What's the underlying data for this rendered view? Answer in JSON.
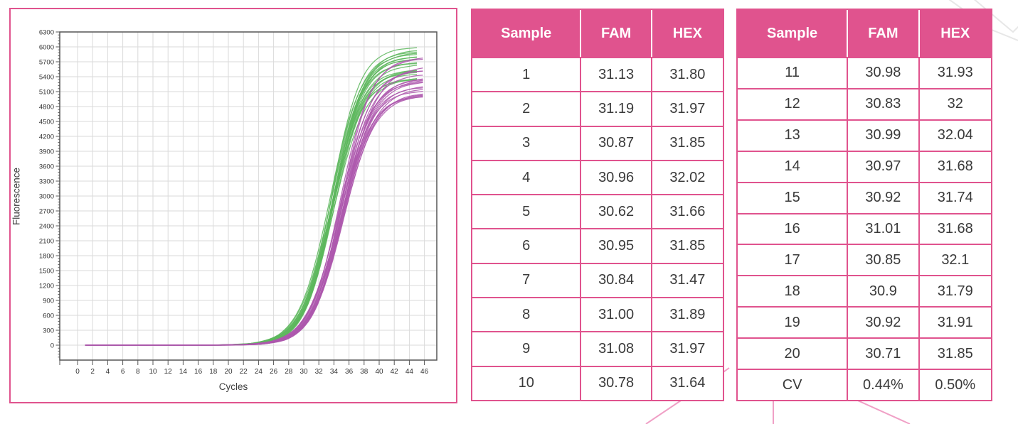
{
  "colors": {
    "accent_pink": "#e0538e",
    "deco_pink": "#f0a0c6",
    "deco_gray": "#e7e7e7",
    "grid": "#dadada",
    "axis": "#555555",
    "tick_text": "#333333",
    "fam_green": "#5db75d",
    "hex_purple": "#ad58ad"
  },
  "chart_data": {
    "type": "line",
    "title": "",
    "xlabel": "Cycles",
    "ylabel": "Fluorescence",
    "xlim": [
      0,
      46
    ],
    "ylim": [
      -300,
      6300
    ],
    "grid": true,
    "legend": false,
    "x_ticks": [
      0,
      2,
      4,
      6,
      8,
      10,
      12,
      14,
      16,
      18,
      20,
      22,
      24,
      26,
      28,
      30,
      32,
      34,
      36,
      38,
      40,
      42,
      44,
      46
    ],
    "y_ticks": [
      0,
      300,
      600,
      900,
      1200,
      1500,
      1800,
      2100,
      2400,
      2700,
      3000,
      3300,
      3600,
      3900,
      4200,
      4500,
      4800,
      5100,
      5400,
      5700,
      6000,
      6300
    ],
    "series_groups": [
      {
        "name": "FAM",
        "color": "#5db75d",
        "cts": [
          31.13,
          31.19,
          30.87,
          30.96,
          30.62,
          30.95,
          30.84,
          31.0,
          31.08,
          30.78,
          30.98,
          30.83,
          30.99,
          30.97,
          30.92,
          31.01,
          30.85,
          30.9,
          30.92,
          30.71
        ],
        "plateau_range": [
          5350,
          6050
        ],
        "mid_offset": 2.9,
        "slope": 0.5,
        "x_start": 1,
        "x_end": 45.2
      },
      {
        "name": "HEX",
        "color": "#ad58ad",
        "cts": [
          31.8,
          31.97,
          31.85,
          32.02,
          31.66,
          31.85,
          31.47,
          31.89,
          31.97,
          31.64,
          31.93,
          32,
          32.04,
          31.68,
          31.74,
          31.68,
          32.1,
          31.79,
          31.91,
          31.85
        ],
        "plateau_range": [
          4950,
          5800
        ],
        "mid_offset": 3.15,
        "slope": 0.48,
        "x_start": 1,
        "x_end": 45.8
      }
    ]
  },
  "tables": [
    {
      "headers": [
        "Sample",
        "FAM",
        "HEX"
      ],
      "rows": [
        [
          "1",
          "31.13",
          "31.80"
        ],
        [
          "2",
          "31.19",
          "31.97"
        ],
        [
          "3",
          "30.87",
          "31.85"
        ],
        [
          "4",
          "30.96",
          "32.02"
        ],
        [
          "5",
          "30.62",
          "31.66"
        ],
        [
          "6",
          "30.95",
          "31.85"
        ],
        [
          "7",
          "30.84",
          "31.47"
        ],
        [
          "8",
          "31.00",
          "31.89"
        ],
        [
          "9",
          "31.08",
          "31.97"
        ],
        [
          "10",
          "30.78",
          "31.64"
        ]
      ]
    },
    {
      "headers": [
        "Sample",
        "FAM",
        "HEX"
      ],
      "rows": [
        [
          "11",
          "30.98",
          "31.93"
        ],
        [
          "12",
          "30.83",
          "32"
        ],
        [
          "13",
          "30.99",
          "32.04"
        ],
        [
          "14",
          "30.97",
          "31.68"
        ],
        [
          "15",
          "30.92",
          "31.74"
        ],
        [
          "16",
          "31.01",
          "31.68"
        ],
        [
          "17",
          "30.85",
          "32.1"
        ],
        [
          "18",
          "30.9",
          "31.79"
        ],
        [
          "19",
          "30.92",
          "31.91"
        ],
        [
          "20",
          "30.71",
          "31.85"
        ],
        [
          "CV",
          "0.44%",
          "0.50%"
        ]
      ]
    }
  ]
}
